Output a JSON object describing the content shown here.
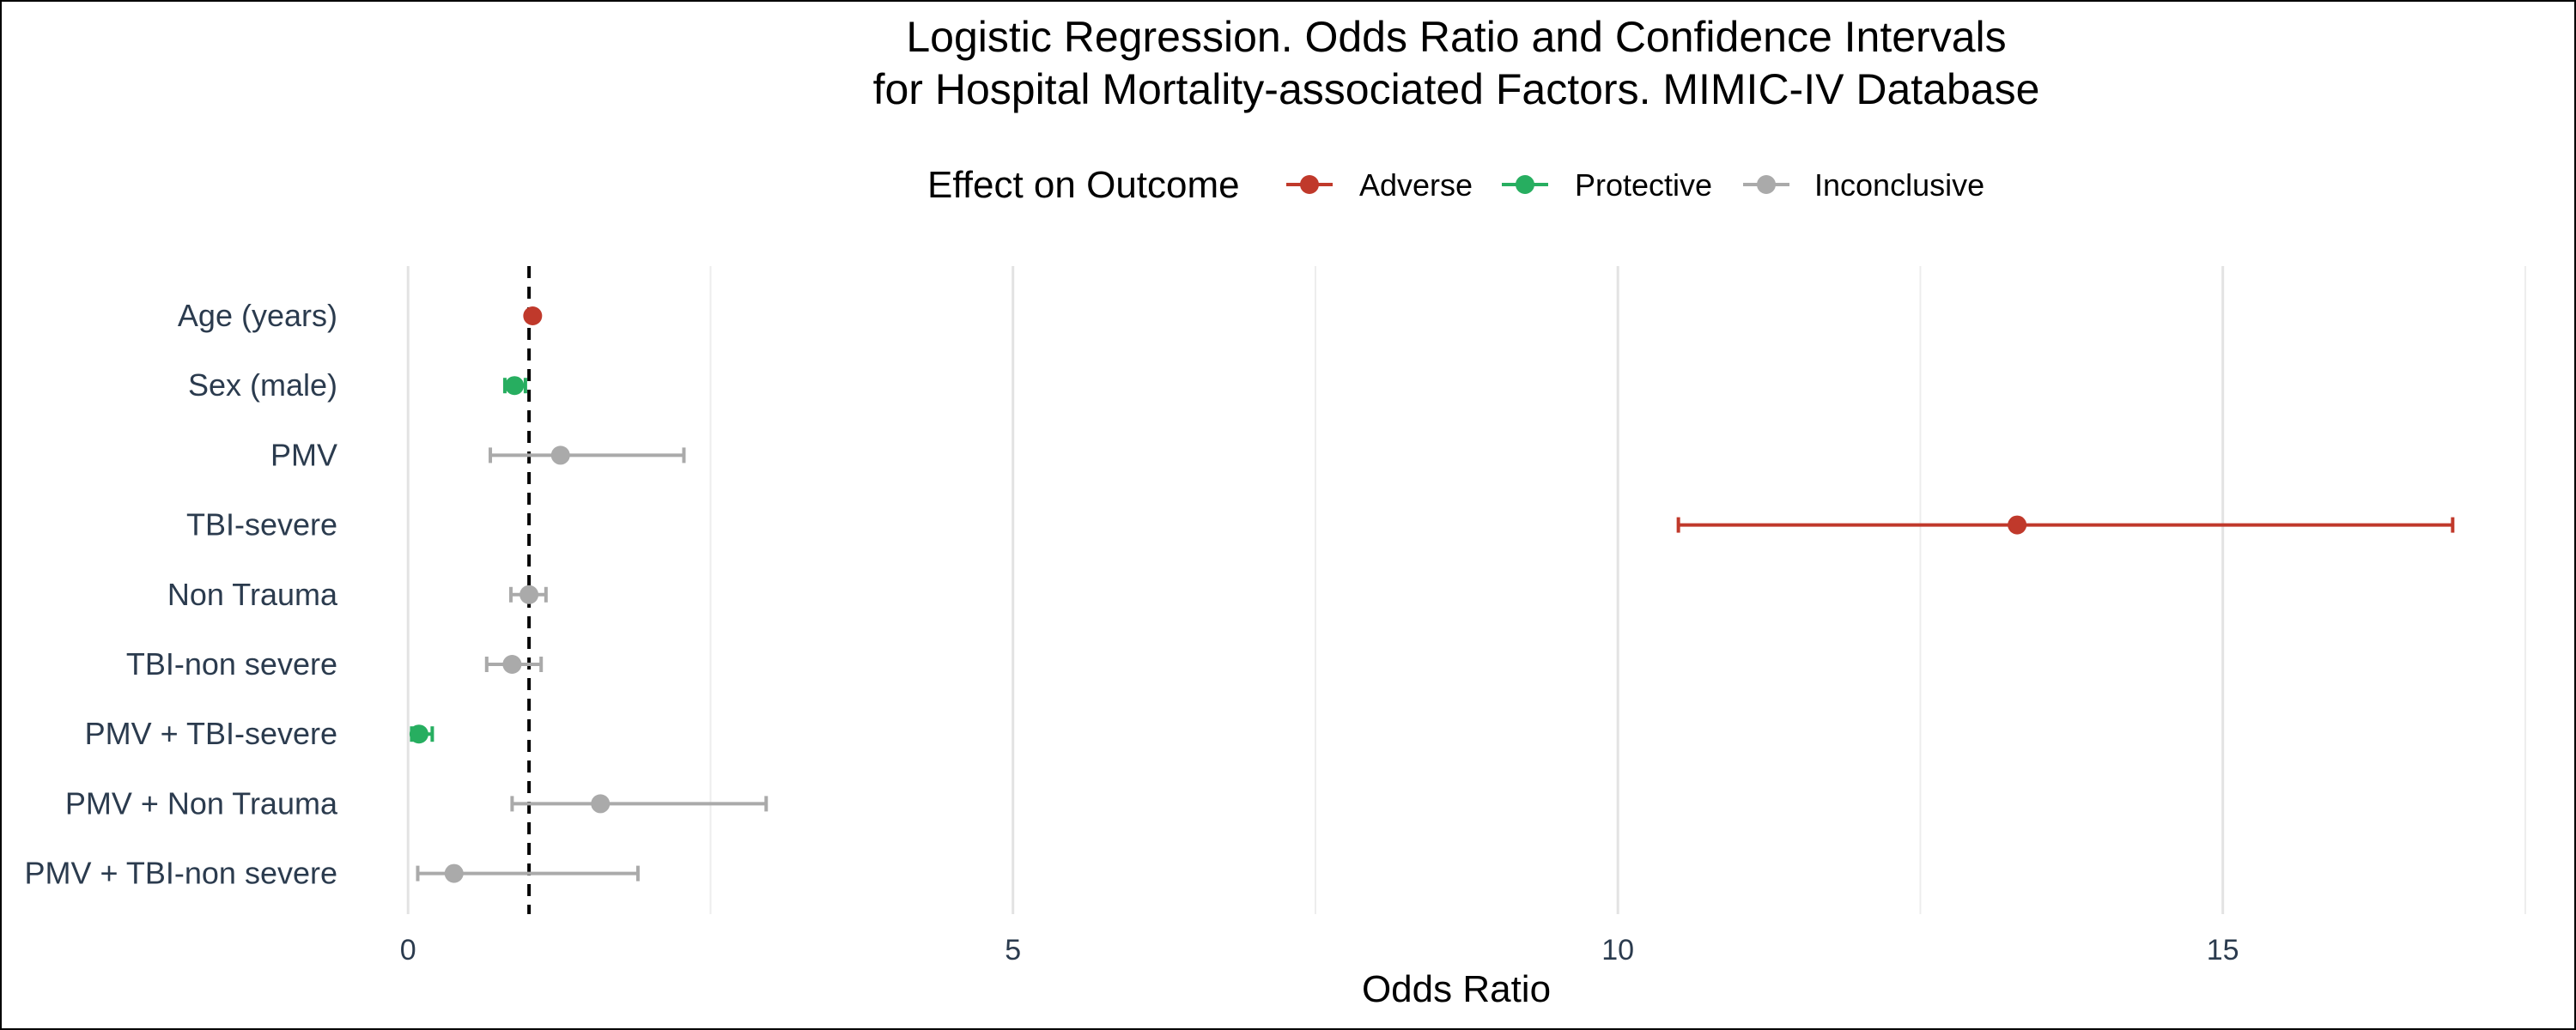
{
  "chart_data": {
    "type": "forest",
    "title_lines": [
      "Logistic Regression. Odds Ratio and Confidence Intervals",
      "for Hospital Mortality-associated Factors. MIMIC-IV Database"
    ],
    "xlabel": "Odds Ratio",
    "ylabel": "",
    "xlim": [
      -0.25,
      17.6
    ],
    "x_ticks": [
      0,
      5,
      10,
      15
    ],
    "reference_line": 1,
    "grid": true,
    "legend": {
      "title": "Effect on Outcome",
      "placement": "top",
      "entries": [
        {
          "label": "Adverse",
          "color": "#c0392b"
        },
        {
          "label": "Protective",
          "color": "#27ae60"
        },
        {
          "label": "Inconclusive",
          "color": "#aaaaaa"
        }
      ]
    },
    "colors": {
      "Adverse": "#c0392b",
      "Protective": "#27ae60",
      "Inconclusive": "#aaaaaa"
    },
    "factors": [
      {
        "label": "Age (years)",
        "or": 1.03,
        "lower": 1.02,
        "upper": 1.05,
        "effect": "Adverse"
      },
      {
        "label": "Sex (male)",
        "or": 0.88,
        "lower": 0.8,
        "upper": 0.97,
        "effect": "Protective"
      },
      {
        "label": "PMV",
        "or": 1.26,
        "lower": 0.68,
        "upper": 2.28,
        "effect": "Inconclusive"
      },
      {
        "label": "TBI-severe",
        "or": 13.3,
        "lower": 10.5,
        "upper": 16.9,
        "effect": "Adverse"
      },
      {
        "label": "Non Trauma",
        "or": 1.0,
        "lower": 0.85,
        "upper": 1.14,
        "effect": "Inconclusive"
      },
      {
        "label": "TBI-non severe",
        "or": 0.86,
        "lower": 0.65,
        "upper": 1.1,
        "effect": "Inconclusive"
      },
      {
        "label": "PMV + TBI-severe",
        "or": 0.09,
        "lower": 0.03,
        "upper": 0.2,
        "effect": "Protective"
      },
      {
        "label": "PMV + Non Trauma",
        "or": 1.59,
        "lower": 0.86,
        "upper": 2.96,
        "effect": "Inconclusive"
      },
      {
        "label": "PMV + TBI-non severe",
        "or": 0.38,
        "lower": 0.08,
        "upper": 1.9,
        "effect": "Inconclusive"
      }
    ]
  }
}
